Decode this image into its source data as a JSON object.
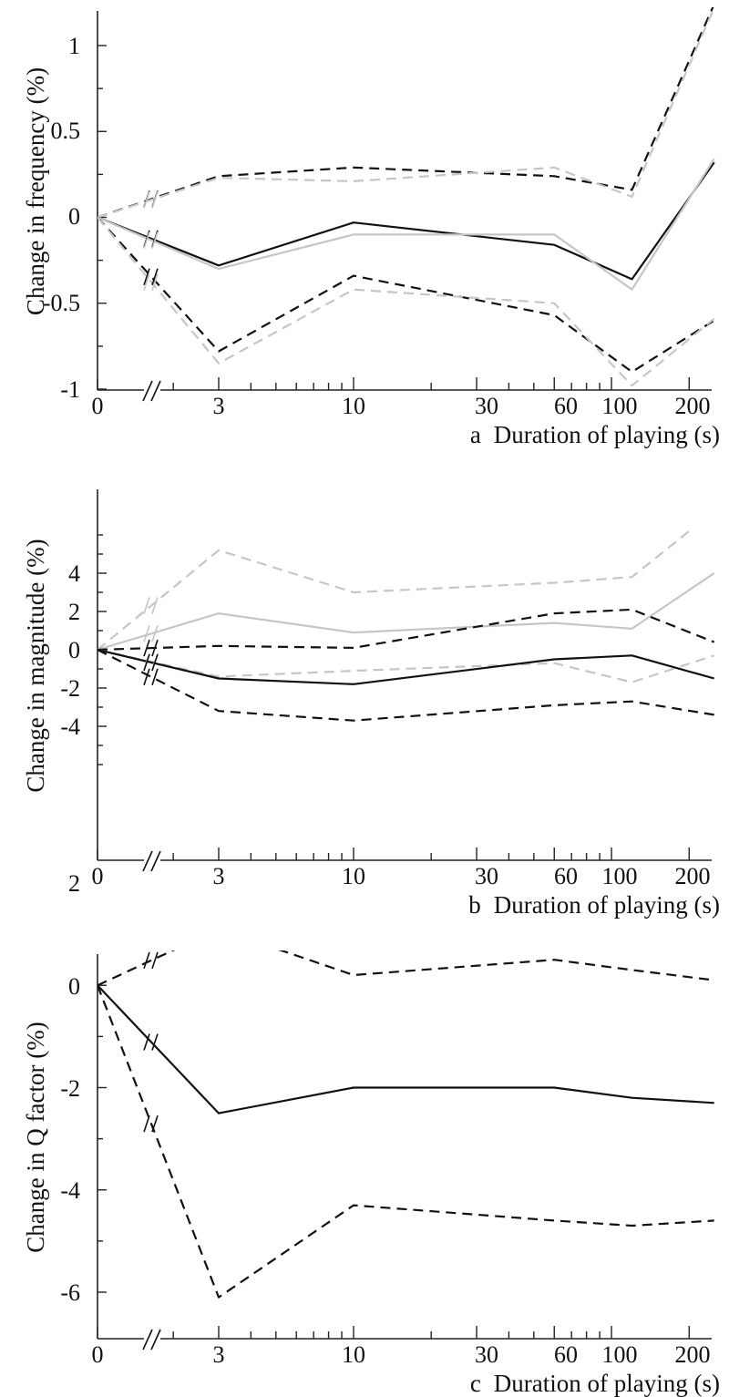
{
  "colors": {
    "black": "#111111",
    "gray": "#c6c6c6"
  },
  "chart_data": [
    {
      "panel_label": "a",
      "type": "line",
      "xlabel": "Duration of playing (s)",
      "ylabel": "Change in frequency (%)",
      "x_scale": "log with axis break after 0",
      "ylim": [
        -1,
        1.2
      ],
      "x_tick_labels": [
        "0",
        "3",
        "10",
        "30",
        "60",
        "100",
        "200"
      ],
      "y_tick_labels": [
        "-1",
        "-0.5",
        "0",
        "0.5",
        "1"
      ],
      "series": [
        {
          "color": "black",
          "dash": "solid",
          "points": [
            [
              0,
              0
            ],
            [
              3,
              -0.28
            ],
            [
              10,
              -0.03
            ],
            [
              60,
              -0.16
            ],
            [
              120,
              -0.36
            ],
            [
              250,
              0.32
            ]
          ]
        },
        {
          "color": "gray",
          "dash": "solid",
          "points": [
            [
              0,
              0
            ],
            [
              3,
              -0.3
            ],
            [
              10,
              -0.1
            ],
            [
              60,
              -0.1
            ],
            [
              120,
              -0.42
            ],
            [
              250,
              0.34
            ]
          ]
        },
        {
          "color": "black",
          "dash": "dashed",
          "points": [
            [
              0,
              0
            ],
            [
              3,
              0.24
            ],
            [
              10,
              0.29
            ],
            [
              60,
              0.24
            ],
            [
              120,
              0.16
            ],
            [
              250,
              1.24
            ]
          ]
        },
        {
          "color": "gray",
          "dash": "dashed",
          "points": [
            [
              0,
              0
            ],
            [
              3,
              0.23
            ],
            [
              10,
              0.21
            ],
            [
              60,
              0.29
            ],
            [
              120,
              0.12
            ],
            [
              250,
              1.22
            ]
          ]
        },
        {
          "color": "black",
          "dash": "dashed",
          "points": [
            [
              0,
              0
            ],
            [
              3,
              -0.78
            ],
            [
              10,
              -0.34
            ],
            [
              60,
              -0.57
            ],
            [
              120,
              -0.9
            ],
            [
              250,
              -0.6
            ]
          ]
        },
        {
          "color": "gray",
          "dash": "dashed",
          "points": [
            [
              0,
              0
            ],
            [
              3,
              -0.85
            ],
            [
              10,
              -0.42
            ],
            [
              60,
              -0.5
            ],
            [
              120,
              -0.98
            ],
            [
              250,
              -0.59
            ]
          ]
        }
      ]
    },
    {
      "panel_label": "b",
      "type": "line",
      "xlabel": "Duration of playing (s)",
      "ylabel": "Change in magnitude (%)",
      "x_scale": "log with axis break after 0",
      "ylim": [
        -6,
        6
      ],
      "x_tick_labels": [
        "0",
        "3",
        "10",
        "30",
        "60",
        "100",
        "200"
      ],
      "y_tick_labels": [
        "-4",
        "-2",
        "0",
        "2",
        "4"
      ],
      "series": [
        {
          "color": "gray",
          "dash": "dashed",
          "points": [
            [
              0,
              0
            ],
            [
              3,
              5.2
            ],
            [
              10,
              3.0
            ],
            [
              60,
              3.5
            ],
            [
              120,
              3.8
            ],
            [
              200,
              6.2
            ]
          ]
        },
        {
          "color": "gray",
          "dash": "solid",
          "points": [
            [
              0,
              0
            ],
            [
              3,
              1.9
            ],
            [
              10,
              0.9
            ],
            [
              60,
              1.4
            ],
            [
              120,
              1.1
            ],
            [
              250,
              4.0
            ]
          ]
        },
        {
          "color": "black",
          "dash": "dashed",
          "points": [
            [
              0,
              0
            ],
            [
              3,
              0.2
            ],
            [
              10,
              0.1
            ],
            [
              60,
              1.9
            ],
            [
              120,
              2.1
            ],
            [
              250,
              0.4
            ]
          ]
        },
        {
          "color": "gray",
          "dash": "dashed",
          "points": [
            [
              0,
              0
            ],
            [
              3,
              -1.4
            ],
            [
              10,
              -1.1
            ],
            [
              60,
              -0.7
            ],
            [
              120,
              -1.7
            ],
            [
              250,
              -0.3
            ]
          ]
        },
        {
          "color": "black",
          "dash": "solid",
          "points": [
            [
              0,
              0
            ],
            [
              3,
              -1.5
            ],
            [
              10,
              -1.8
            ],
            [
              60,
              -0.5
            ],
            [
              120,
              -0.3
            ],
            [
              250,
              -1.5
            ]
          ]
        },
        {
          "color": "black",
          "dash": "dashed",
          "points": [
            [
              0,
              0
            ],
            [
              3,
              -3.2
            ],
            [
              10,
              -3.7
            ],
            [
              60,
              -2.9
            ],
            [
              120,
              -2.7
            ],
            [
              250,
              -3.4
            ]
          ]
        }
      ]
    },
    {
      "panel_label": "c",
      "type": "line",
      "xlabel": "Duration of playing (s)",
      "ylabel": "Change in Q factor (%)",
      "x_scale": "log with axis break after 0",
      "ylim": [
        -7,
        2
      ],
      "x_tick_labels": [
        "0",
        "3",
        "10",
        "30",
        "60",
        "100",
        "200"
      ],
      "y_tick_labels": [
        "-6",
        "-4",
        "-2",
        "0",
        "2"
      ],
      "series": [
        {
          "color": "black",
          "dash": "dashed",
          "points": [
            [
              0,
              0
            ],
            [
              3,
              1.1
            ],
            [
              10,
              0.2
            ],
            [
              60,
              0.5
            ],
            [
              120,
              0.3
            ],
            [
              250,
              0.1
            ]
          ]
        },
        {
          "color": "black",
          "dash": "solid",
          "points": [
            [
              0,
              0
            ],
            [
              3,
              -2.5
            ],
            [
              10,
              -2.0
            ],
            [
              60,
              -2.0
            ],
            [
              120,
              -2.2
            ],
            [
              250,
              -2.3
            ]
          ]
        },
        {
          "color": "black",
          "dash": "dashed",
          "points": [
            [
              0,
              0
            ],
            [
              3,
              -6.1
            ],
            [
              10,
              -4.3
            ],
            [
              60,
              -4.6
            ],
            [
              120,
              -4.7
            ],
            [
              250,
              -4.6
            ]
          ]
        }
      ]
    }
  ]
}
